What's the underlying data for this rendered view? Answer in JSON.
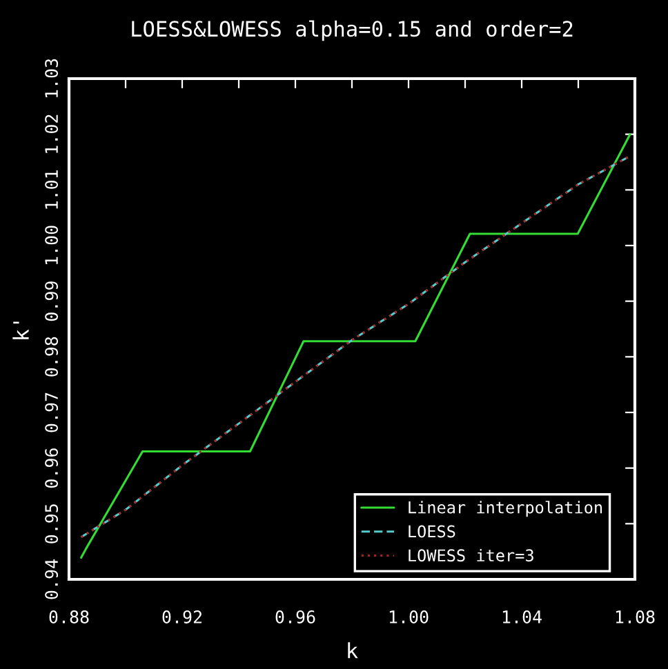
{
  "chart_data": {
    "type": "line",
    "title": "LOESS&LOWESS alpha=0.15 and order=2",
    "xlabel": "k",
    "ylabel": "k'",
    "xlim": [
      0.88,
      1.08
    ],
    "ylim": [
      0.94,
      1.03
    ],
    "xticks": [
      0.88,
      {
        "value": 0.9,
        "label": null
      },
      0.92,
      {
        "value": 0.94,
        "label": null
      },
      0.96,
      {
        "value": 0.98,
        "label": null
      },
      {
        "value": 1.0,
        "label": "1.00"
      },
      {
        "value": 1.02,
        "label": null
      },
      1.04,
      {
        "value": 1.06,
        "label": null
      },
      1.08
    ],
    "yticks": [
      0.94,
      0.95,
      0.96,
      0.97,
      0.98,
      0.99,
      {
        "value": 1.0,
        "label": "1.00"
      },
      1.01,
      1.02,
      1.03
    ],
    "legend": "bottom right",
    "grid": false,
    "series": [
      {
        "name": "Linear interpolation",
        "color": "#33dd33",
        "line_style": "solid",
        "x": [
          0.8843,
          0.886,
          0.906,
          0.944,
          0.9629,
          1.0024,
          1.0217,
          1.0598,
          1.0783
        ],
        "values": [
          0.9439,
          0.9455,
          0.963,
          0.963,
          0.9828,
          0.9828,
          1.0021,
          1.0021,
          1.02
        ]
      },
      {
        "name": "LOESS",
        "color": "#55cccc",
        "line_style": "dashed",
        "x": [
          0.8843,
          0.9,
          0.92,
          0.94,
          0.96,
          0.98,
          1.0,
          1.02,
          1.04,
          1.06,
          1.078
        ],
        "values": [
          0.9476,
          0.9525,
          0.9605,
          0.968,
          0.9755,
          0.983,
          0.9895,
          0.997,
          1.004,
          1.011,
          1.016
        ]
      },
      {
        "name": "LOWESS iter=3",
        "color": "#aa2222",
        "line_style": "dotted",
        "x": [
          0.8843,
          0.9,
          0.92,
          0.94,
          0.96,
          0.98,
          1.0,
          1.02,
          1.04,
          1.06,
          1.078
        ],
        "values": [
          0.9476,
          0.9525,
          0.9605,
          0.968,
          0.9755,
          0.983,
          0.9895,
          0.997,
          1.004,
          1.011,
          1.016
        ]
      }
    ]
  }
}
